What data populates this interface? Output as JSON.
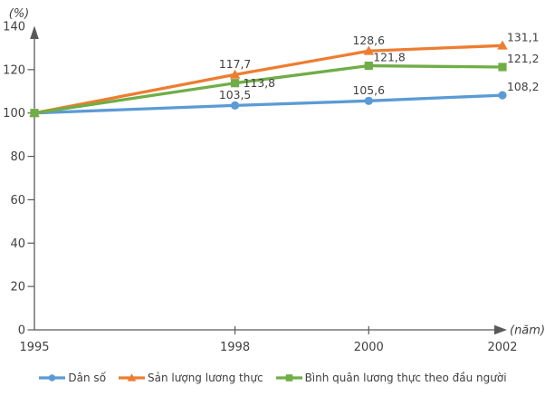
{
  "chart_data": {
    "type": "line",
    "title": "",
    "y_axis_unit_label": "(%)",
    "x_axis_unit_label": "(năm)",
    "x": [
      1995,
      1998,
      2000,
      2002
    ],
    "x_tick_labels": [
      "1995",
      "1998",
      "2000",
      "2002"
    ],
    "y_ticks": [
      0,
      20,
      40,
      60,
      80,
      100,
      120,
      140
    ],
    "ylim": [
      0,
      140
    ],
    "xlim": [
      1995,
      2002
    ],
    "grid": false,
    "legend_position": "bottom",
    "axis_color": "#595959",
    "text_color": "#404040",
    "series": [
      {
        "name": "Dân số",
        "color": "#5B9BD5",
        "marker": "circle",
        "values": [
          100,
          103.5,
          105.6,
          108.2
        ],
        "point_labels": [
          "",
          "103,5",
          "105,6",
          "108,2"
        ],
        "point_label_pos": [
          "none",
          "above",
          "above",
          "above-right"
        ]
      },
      {
        "name": "Sản lượng lương thực",
        "color": "#ED7D31",
        "marker": "triangle",
        "values": [
          100,
          117.7,
          128.6,
          131.1
        ],
        "point_labels": [
          "",
          "117,7",
          "128,6",
          "131,1"
        ],
        "point_label_pos": [
          "none",
          "above",
          "above",
          "above-right"
        ]
      },
      {
        "name": "Bình quân lương thực theo đầu người",
        "color": "#70AD47",
        "marker": "square",
        "values": [
          100,
          113.8,
          121.8,
          121.2
        ],
        "point_labels": [
          "",
          "113,8",
          "121,8",
          "121,2"
        ],
        "point_label_pos": [
          "none",
          "right",
          "above-right",
          "above-right"
        ]
      }
    ]
  }
}
